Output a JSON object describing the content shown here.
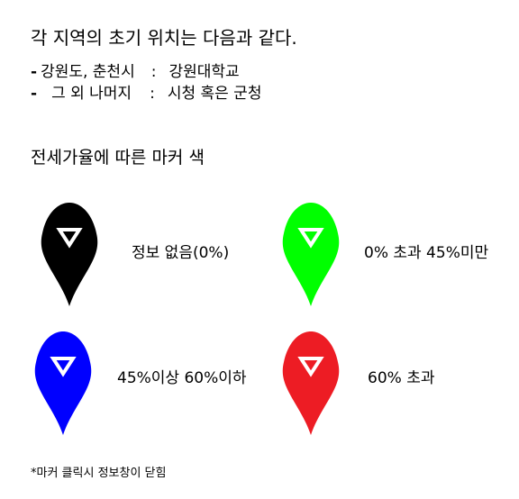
{
  "intro": {
    "heading": "각 지역의 초기 위치는 다음과 같다.",
    "locations": [
      {
        "dash": "-",
        "region": "강원도, 춘천시",
        "sep": ":",
        "place": "강원대학교"
      },
      {
        "dash": "-",
        "region": "그 외 나머지",
        "sep": ":",
        "place": "시청 혹은 군청"
      }
    ]
  },
  "legend": {
    "heading": "전세가율에 따른 마커 색",
    "items": [
      {
        "color": "#000000",
        "icon": "map-pin-icon",
        "label": "정보 없음(0%)"
      },
      {
        "color": "#00ff00",
        "icon": "map-pin-icon",
        "label": "0% 초과 45%미만"
      },
      {
        "color": "#0000ff",
        "icon": "map-pin-icon",
        "label": "45%이상 60%이하"
      },
      {
        "color": "#ed1c24",
        "icon": "map-pin-icon",
        "label": "60% 초과"
      }
    ]
  },
  "footnote": "*마커 클릭시 정보창이 닫힘"
}
